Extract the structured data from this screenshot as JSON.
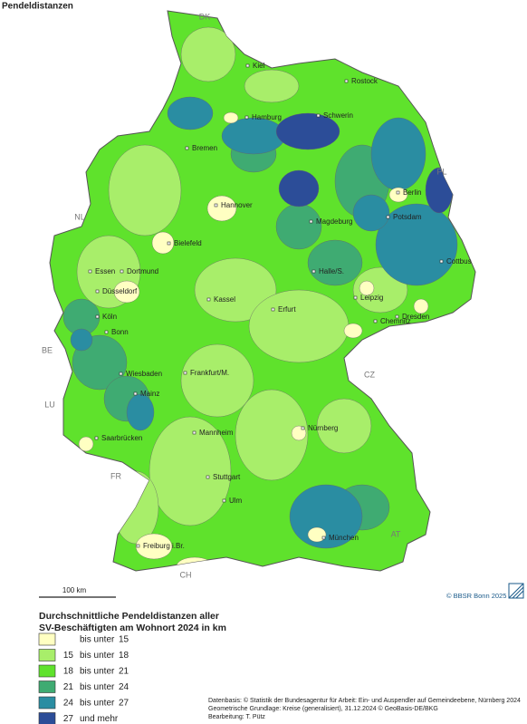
{
  "title": "Pendeldistanzen",
  "countries": [
    "DK",
    "PL",
    "NL",
    "BE",
    "LU",
    "CZ",
    "FR",
    "AT",
    "CH"
  ],
  "cities": [
    "Kiel",
    "Rostock",
    "Hamburg",
    "Schwerin",
    "Bremen",
    "Berlin",
    "Hannover",
    "Potsdam",
    "Magdeburg",
    "Bielefeld",
    "Essen",
    "Dortmund",
    "Halle/S.",
    "Cottbus",
    "Düsseldorf",
    "Kassel",
    "Leipzig",
    "Köln",
    "Erfurt",
    "Dresden",
    "Chemnitz",
    "Bonn",
    "Wiesbaden",
    "Frankfurt/M.",
    "Mainz",
    "Nürnberg",
    "Saarbrücken",
    "Mannheim",
    "Stuttgart",
    "Ulm",
    "München",
    "Freiburg i.Br."
  ],
  "scale": "100 km",
  "credit": "© BBSR Bonn 2025",
  "legend": {
    "title": [
      "Durchschnittliche Pendeldistanzen aller",
      "SV-Beschäftigten am Wohnort 2024 in km"
    ],
    "classes": [
      {
        "text": "bis unter",
        "to": 15,
        "color": "#ffffc2"
      },
      {
        "from": 15,
        "text": "bis unter",
        "to": 18,
        "color": "#a8ee6a"
      },
      {
        "from": 18,
        "text": "bis unter",
        "to": 21,
        "color": "#5fe22c"
      },
      {
        "from": 21,
        "text": "bis unter",
        "to": 24,
        "color": "#3fab72"
      },
      {
        "from": 24,
        "text": "bis unter",
        "to": 27,
        "color": "#2a8da2"
      },
      {
        "from": 27,
        "text": "und mehr",
        "color": "#2c4d98"
      }
    ]
  },
  "source": [
    "Datenbasis: © Statistik der Bundesagentur für Arbeit: Ein- und Auspendler auf Gemeindeebene, Nürnberg 2024",
    "Geometrische Grundlage: Kreise (generalisiert), 31.12.2024 © GeoBasis-DE/BKG",
    "Bearbeitung: T. Pütz"
  ]
}
